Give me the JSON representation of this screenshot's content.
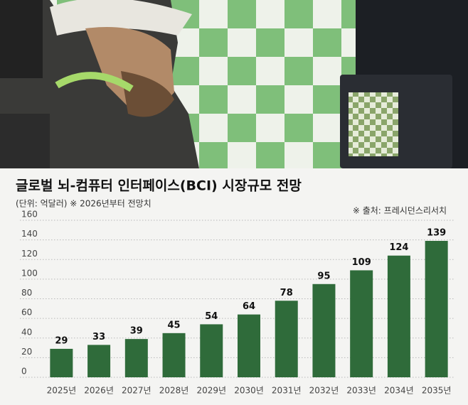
{
  "chart_data": {
    "type": "bar",
    "title": "글로벌 뇌-컴퓨터 인터페이스(BCI) 시장규모 전망",
    "subtitle": "(단위: 억달러) ※ 2026년부터 전망치",
    "source": "※ 출처: 프레시던스리서치",
    "categories": [
      "2025년",
      "2026년",
      "2027년",
      "2028년",
      "2029년",
      "2030년",
      "2031년",
      "2032년",
      "2033년",
      "2034년",
      "2035년"
    ],
    "values": [
      29,
      33,
      39,
      45,
      54,
      64,
      78,
      95,
      109,
      124,
      139
    ],
    "color": "#2f6b3a",
    "ylim": [
      0,
      160
    ],
    "yticks": [
      0,
      20,
      40,
      60,
      80,
      100,
      120,
      140,
      160
    ],
    "grid": true
  }
}
